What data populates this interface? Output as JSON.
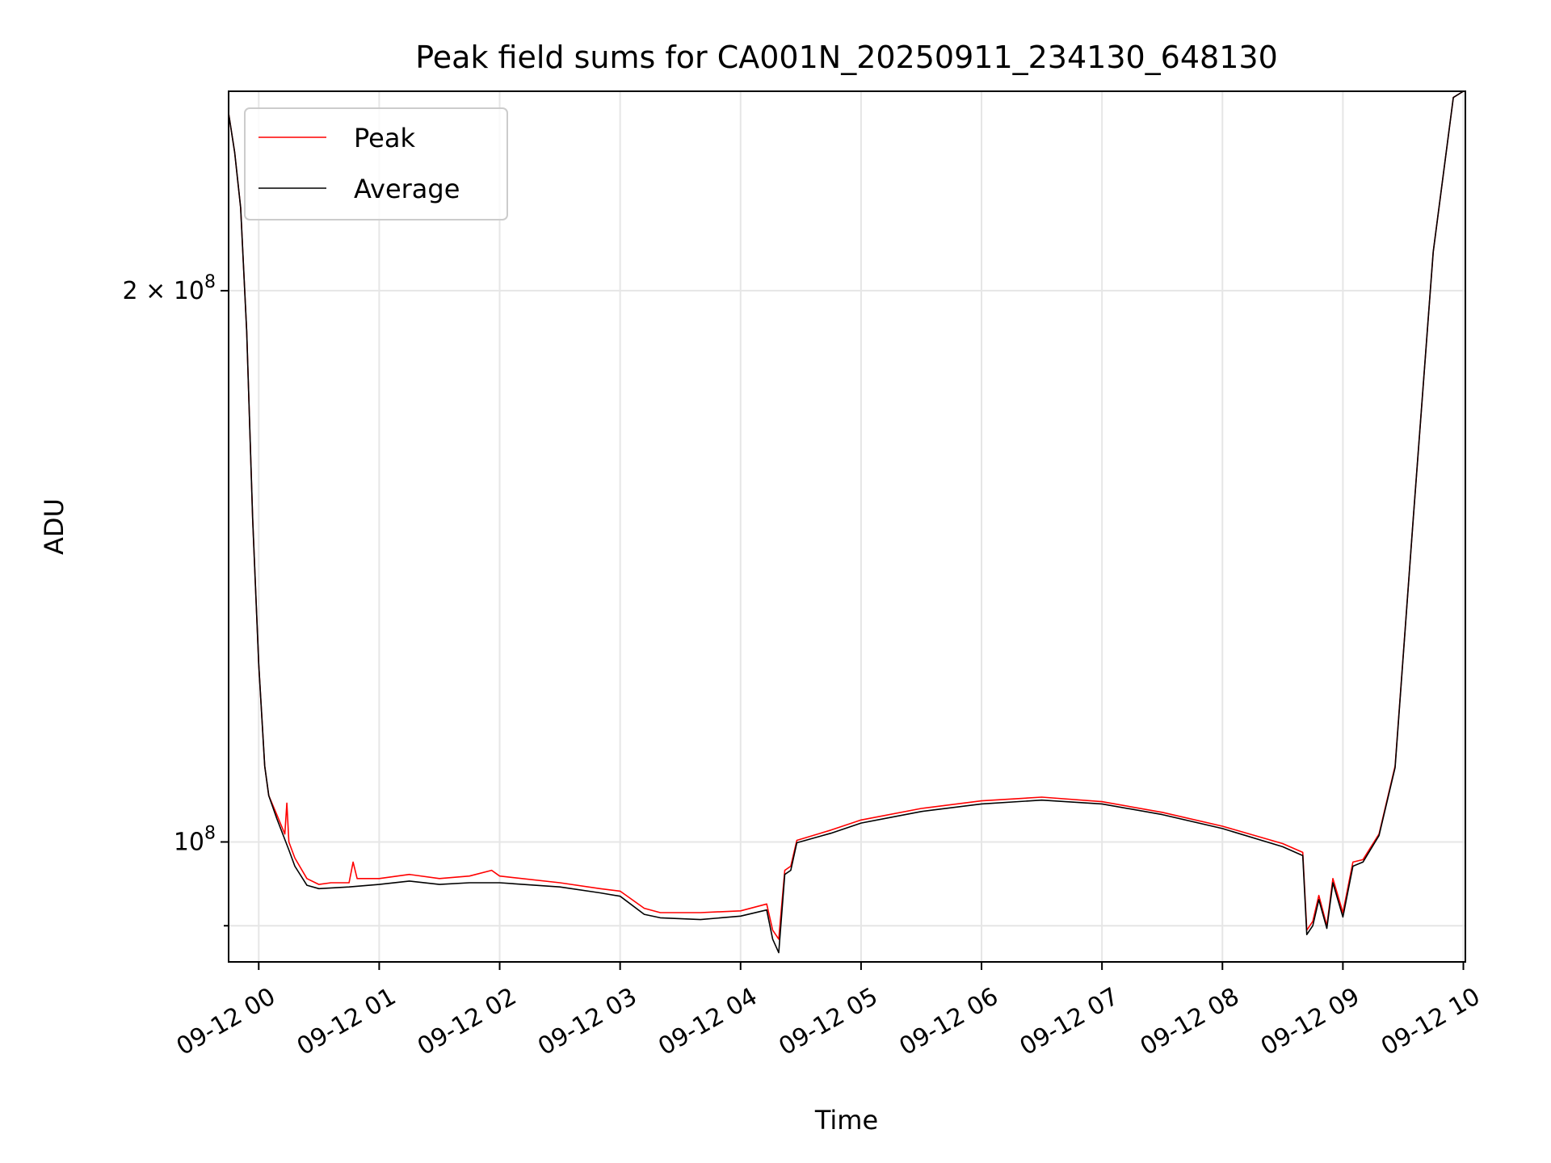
{
  "chart_data": {
    "type": "line",
    "title": "Peak field sums for CA001N_20250911_234130_648130",
    "xlabel": "Time",
    "ylabel": "ADU",
    "y_scale": "log",
    "grid": true,
    "legend_position": "upper-left",
    "xlim": [
      "2025-09-11 23:45",
      "2025-09-12 10:01"
    ],
    "ylim": [
      86000000,
      257000000
    ],
    "x_ticks": [
      {
        "t": "2025-09-12 00:00",
        "label": "09-12 00"
      },
      {
        "t": "2025-09-12 01:00",
        "label": "09-12 01"
      },
      {
        "t": "2025-09-12 02:00",
        "label": "09-12 02"
      },
      {
        "t": "2025-09-12 03:00",
        "label": "09-12 03"
      },
      {
        "t": "2025-09-12 04:00",
        "label": "09-12 04"
      },
      {
        "t": "2025-09-12 05:00",
        "label": "09-12 05"
      },
      {
        "t": "2025-09-12 06:00",
        "label": "09-12 06"
      },
      {
        "t": "2025-09-12 07:00",
        "label": "09-12 07"
      },
      {
        "t": "2025-09-12 08:00",
        "label": "09-12 08"
      },
      {
        "t": "2025-09-12 09:00",
        "label": "09-12 09"
      },
      {
        "t": "2025-09-12 10:00",
        "label": "09-12 10"
      }
    ],
    "y_ticks_major": [
      {
        "v": 100000000,
        "base": "10",
        "exp": "8",
        "coef": ""
      },
      {
        "v": 200000000,
        "base": "10",
        "exp": "8",
        "coef": "2 × "
      }
    ],
    "y_ticks_minor": [
      90000000
    ],
    "colors": {
      "Peak": "#ff0000",
      "Average": "#000000"
    },
    "series": [
      {
        "name": "Peak",
        "points": [
          [
            "2025-09-11 23:45",
            250000000
          ],
          [
            "2025-09-11 23:48",
            238000000
          ],
          [
            "2025-09-11 23:51",
            222000000
          ],
          [
            "2025-09-11 23:54",
            190000000
          ],
          [
            "2025-09-11 23:57",
            150000000
          ],
          [
            "2025-09-12 00:00",
            125000000
          ],
          [
            "2025-09-12 00:03",
            110000000
          ],
          [
            "2025-09-12 00:05",
            106000000
          ],
          [
            "2025-09-12 00:09",
            103500000
          ],
          [
            "2025-09-12 00:13",
            101000000
          ],
          [
            "2025-09-12 00:14",
            105000000
          ],
          [
            "2025-09-12 00:15",
            100000000
          ],
          [
            "2025-09-12 00:18",
            98000000
          ],
          [
            "2025-09-12 00:24",
            95500000
          ],
          [
            "2025-09-12 00:30",
            94800000
          ],
          [
            "2025-09-12 00:36",
            95000000
          ],
          [
            "2025-09-12 00:45",
            95000000
          ],
          [
            "2025-09-12 00:47",
            97500000
          ],
          [
            "2025-09-12 00:49",
            95500000
          ],
          [
            "2025-09-12 01:00",
            95500000
          ],
          [
            "2025-09-12 01:15",
            96000000
          ],
          [
            "2025-09-12 01:30",
            95500000
          ],
          [
            "2025-09-12 01:45",
            95800000
          ],
          [
            "2025-09-12 01:56",
            96500000
          ],
          [
            "2025-09-12 02:00",
            95800000
          ],
          [
            "2025-09-12 02:30",
            95000000
          ],
          [
            "2025-09-12 02:50",
            94300000
          ],
          [
            "2025-09-12 03:00",
            94000000
          ],
          [
            "2025-09-12 03:12",
            92000000
          ],
          [
            "2025-09-12 03:20",
            91500000
          ],
          [
            "2025-09-12 03:40",
            91500000
          ],
          [
            "2025-09-12 04:00",
            91700000
          ],
          [
            "2025-09-12 04:13",
            92500000
          ],
          [
            "2025-09-12 04:16",
            89500000
          ],
          [
            "2025-09-12 04:19",
            88500000
          ],
          [
            "2025-09-12 04:22",
            96500000
          ],
          [
            "2025-09-12 04:25",
            97000000
          ],
          [
            "2025-09-12 04:28",
            100200000
          ],
          [
            "2025-09-12 04:45",
            101500000
          ],
          [
            "2025-09-12 05:00",
            102800000
          ],
          [
            "2025-09-12 05:30",
            104300000
          ],
          [
            "2025-09-12 06:00",
            105300000
          ],
          [
            "2025-09-12 06:30",
            105800000
          ],
          [
            "2025-09-12 07:00",
            105200000
          ],
          [
            "2025-09-12 07:30",
            103800000
          ],
          [
            "2025-09-12 08:00",
            102000000
          ],
          [
            "2025-09-12 08:30",
            99800000
          ],
          [
            "2025-09-12 08:40",
            98700000
          ],
          [
            "2025-09-12 08:42",
            89500000
          ],
          [
            "2025-09-12 08:45",
            90500000
          ],
          [
            "2025-09-12 08:48",
            93500000
          ],
          [
            "2025-09-12 08:52",
            90000000
          ],
          [
            "2025-09-12 08:55",
            95500000
          ],
          [
            "2025-09-12 09:00",
            91500000
          ],
          [
            "2025-09-12 09:05",
            97500000
          ],
          [
            "2025-09-12 09:10",
            97800000
          ],
          [
            "2025-09-12 09:18",
            101000000
          ],
          [
            "2025-09-12 09:26",
            110000000
          ],
          [
            "2025-09-12 09:35",
            150000000
          ],
          [
            "2025-09-12 09:45",
            210000000
          ],
          [
            "2025-09-12 09:55",
            255000000
          ],
          [
            "2025-09-12 10:00",
            257000000
          ]
        ]
      },
      {
        "name": "Average",
        "points": [
          [
            "2025-09-11 23:45",
            250000000
          ],
          [
            "2025-09-11 23:48",
            238000000
          ],
          [
            "2025-09-11 23:51",
            222000000
          ],
          [
            "2025-09-11 23:54",
            190000000
          ],
          [
            "2025-09-11 23:57",
            150000000
          ],
          [
            "2025-09-12 00:00",
            125000000
          ],
          [
            "2025-09-12 00:03",
            110000000
          ],
          [
            "2025-09-12 00:05",
            106000000
          ],
          [
            "2025-09-12 00:09",
            103000000
          ],
          [
            "2025-09-12 00:15",
            99000000
          ],
          [
            "2025-09-12 00:18",
            97000000
          ],
          [
            "2025-09-12 00:24",
            94700000
          ],
          [
            "2025-09-12 00:30",
            94300000
          ],
          [
            "2025-09-12 00:45",
            94500000
          ],
          [
            "2025-09-12 01:00",
            94800000
          ],
          [
            "2025-09-12 01:15",
            95200000
          ],
          [
            "2025-09-12 01:30",
            94800000
          ],
          [
            "2025-09-12 01:45",
            95000000
          ],
          [
            "2025-09-12 02:00",
            95000000
          ],
          [
            "2025-09-12 02:30",
            94500000
          ],
          [
            "2025-09-12 02:50",
            93800000
          ],
          [
            "2025-09-12 03:00",
            93400000
          ],
          [
            "2025-09-12 03:12",
            91300000
          ],
          [
            "2025-09-12 03:20",
            90900000
          ],
          [
            "2025-09-12 03:40",
            90700000
          ],
          [
            "2025-09-12 04:00",
            91100000
          ],
          [
            "2025-09-12 04:13",
            91800000
          ],
          [
            "2025-09-12 04:16",
            88500000
          ],
          [
            "2025-09-12 04:19",
            87000000
          ],
          [
            "2025-09-12 04:22",
            96000000
          ],
          [
            "2025-09-12 04:25",
            96500000
          ],
          [
            "2025-09-12 04:28",
            99900000
          ],
          [
            "2025-09-12 04:45",
            101100000
          ],
          [
            "2025-09-12 05:00",
            102400000
          ],
          [
            "2025-09-12 05:30",
            103900000
          ],
          [
            "2025-09-12 06:00",
            104900000
          ],
          [
            "2025-09-12 06:30",
            105400000
          ],
          [
            "2025-09-12 07:00",
            104900000
          ],
          [
            "2025-09-12 07:30",
            103500000
          ],
          [
            "2025-09-12 08:00",
            101700000
          ],
          [
            "2025-09-12 08:30",
            99400000
          ],
          [
            "2025-09-12 08:40",
            98300000
          ],
          [
            "2025-09-12 08:42",
            89000000
          ],
          [
            "2025-09-12 08:45",
            90000000
          ],
          [
            "2025-09-12 08:48",
            93000000
          ],
          [
            "2025-09-12 08:52",
            89700000
          ],
          [
            "2025-09-12 08:55",
            95000000
          ],
          [
            "2025-09-12 09:00",
            91000000
          ],
          [
            "2025-09-12 09:05",
            97000000
          ],
          [
            "2025-09-12 09:10",
            97500000
          ],
          [
            "2025-09-12 09:18",
            100800000
          ],
          [
            "2025-09-12 09:26",
            109800000
          ],
          [
            "2025-09-12 09:35",
            150000000
          ],
          [
            "2025-09-12 09:45",
            210000000
          ],
          [
            "2025-09-12 09:55",
            255000000
          ],
          [
            "2025-09-12 10:00",
            257000000
          ]
        ]
      }
    ]
  }
}
